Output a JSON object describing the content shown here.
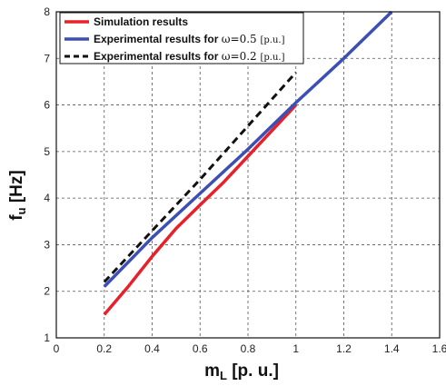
{
  "chart_data": {
    "type": "line",
    "xlabel_main": "m",
    "xlabel_sub": "L",
    "xlabel_unit": " [p. u.]",
    "ylabel_main": "f",
    "ylabel_sub": "u",
    "ylabel_unit": " [Hz]",
    "xlim": [
      0,
      1.6
    ],
    "ylim": [
      1,
      8
    ],
    "xticks": [
      0,
      0.2,
      0.4,
      0.6,
      0.8,
      1,
      1.2,
      1.4,
      1.6
    ],
    "yticks": [
      1,
      2,
      3,
      4,
      5,
      6,
      7,
      8
    ],
    "grid": true,
    "legend_position": "top-left",
    "series": [
      {
        "name": "Simulation results",
        "color": "#e8202a",
        "style": "solid",
        "x": [
          0.2,
          0.3,
          0.4,
          0.5,
          0.6,
          0.7,
          0.8,
          0.9,
          1.0
        ],
        "y": [
          1.5,
          2.1,
          2.75,
          3.35,
          3.85,
          4.35,
          4.9,
          5.45,
          6.0
        ]
      },
      {
        "name_prefix": "Experimental results for ",
        "name_symbol": "ω",
        "name_value": "=0.5 ",
        "name_unit": "[p.u.]",
        "color": "#3b4fb4",
        "style": "solid",
        "x": [
          0.2,
          0.4,
          0.6,
          0.8,
          1.0,
          1.2,
          1.4
        ],
        "y": [
          2.1,
          3.15,
          4.1,
          5.05,
          6.05,
          7.0,
          8.0
        ]
      },
      {
        "name_prefix": "Experimental results for ",
        "name_symbol": "ω",
        "name_value": "=0.2 ",
        "name_unit": "[p.u.]",
        "color": "#111111",
        "style": "dashed",
        "x": [
          0.2,
          0.4,
          0.6,
          0.8,
          1.0
        ],
        "y": [
          2.2,
          3.3,
          4.4,
          5.55,
          6.7
        ]
      }
    ]
  }
}
